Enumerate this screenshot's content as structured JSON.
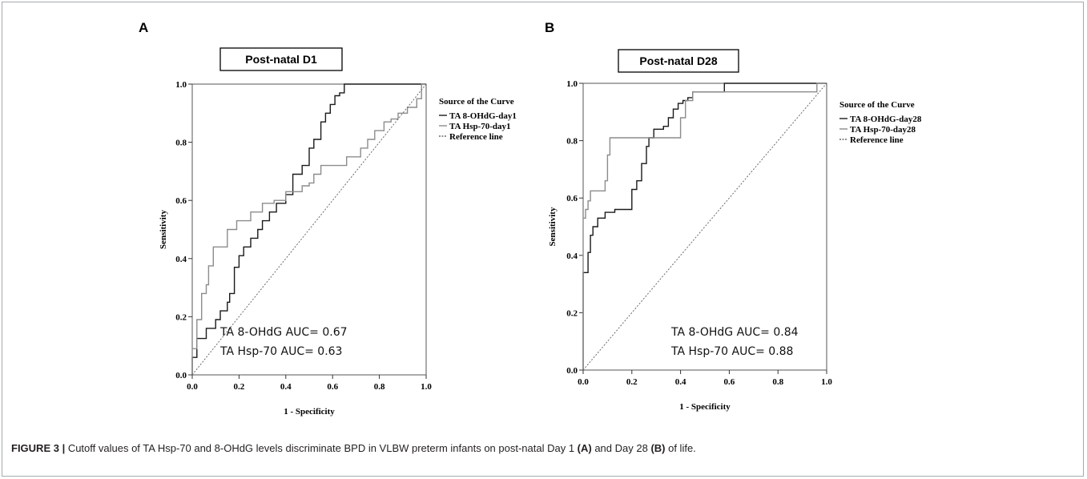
{
  "figure": {
    "caption_label": "FIGURE 3 |",
    "caption_text_1": " Cutoff values of TA Hsp-70 and 8-OHdG levels discriminate BPD in VLBW preterm infants on post-natal Day 1 ",
    "caption_ref_a": "(A)",
    "caption_text_2": " and Day 28 ",
    "caption_ref_b": "(B)",
    "caption_text_3": " of life."
  },
  "chart_data": [
    {
      "type": "line",
      "panel": "A",
      "title": "Post-natal D1",
      "xlabel": "1 - Specificity",
      "ylabel": "Sensitivity",
      "xlim": [
        0,
        1
      ],
      "ylim": [
        0,
        1
      ],
      "xticks": [
        "0.0",
        "0.2",
        "0.4",
        "0.6",
        "0.8",
        "1.0"
      ],
      "yticks": [
        "0.0",
        "0.2",
        "0.4",
        "0.6",
        "0.8",
        "1.0"
      ],
      "legend_title": "Source of the Curve",
      "legend_position": "right-outside",
      "grid": false,
      "series": [
        {
          "name": "TA 8-OHdG-day1",
          "color": "#1a1a1a",
          "dash": "solid",
          "x": [
            0,
            0,
            0.02,
            0.02,
            0.06,
            0.06,
            0.1,
            0.1,
            0.12,
            0.12,
            0.15,
            0.15,
            0.16,
            0.16,
            0.18,
            0.18,
            0.2,
            0.2,
            0.22,
            0.22,
            0.25,
            0.25,
            0.28,
            0.28,
            0.3,
            0.3,
            0.33,
            0.33,
            0.36,
            0.36,
            0.4,
            0.4,
            0.43,
            0.43,
            0.47,
            0.47,
            0.5,
            0.5,
            0.52,
            0.52,
            0.55,
            0.55,
            0.57,
            0.57,
            0.59,
            0.59,
            0.61,
            0.61,
            0.63,
            0.63,
            0.65,
            0.65,
            1
          ],
          "y": [
            0,
            0.06,
            0.06,
            0.125,
            0.125,
            0.16,
            0.16,
            0.19,
            0.19,
            0.22,
            0.22,
            0.25,
            0.25,
            0.28,
            0.28,
            0.37,
            0.37,
            0.41,
            0.41,
            0.44,
            0.44,
            0.47,
            0.47,
            0.5,
            0.5,
            0.53,
            0.53,
            0.56,
            0.56,
            0.59,
            0.59,
            0.62,
            0.62,
            0.69,
            0.69,
            0.72,
            0.72,
            0.78,
            0.78,
            0.81,
            0.81,
            0.87,
            0.87,
            0.9,
            0.9,
            0.93,
            0.93,
            0.96,
            0.96,
            0.97,
            0.97,
            1,
            1
          ]
        },
        {
          "name": "TA Hsp-70-day1",
          "color": "#8c8c8c",
          "dash": "solid",
          "x": [
            0,
            0,
            0.02,
            0.02,
            0.04,
            0.04,
            0.06,
            0.06,
            0.07,
            0.07,
            0.09,
            0.09,
            0.15,
            0.15,
            0.19,
            0.19,
            0.25,
            0.25,
            0.3,
            0.3,
            0.35,
            0.35,
            0.4,
            0.4,
            0.47,
            0.47,
            0.5,
            0.5,
            0.52,
            0.52,
            0.55,
            0.55,
            0.6,
            0.6,
            0.66,
            0.66,
            0.72,
            0.72,
            0.75,
            0.75,
            0.78,
            0.78,
            0.82,
            0.82,
            0.85,
            0.85,
            0.88,
            0.88,
            0.92,
            0.92,
            0.96,
            0.96,
            0.98,
            0.98,
            1
          ],
          "y": [
            0,
            0.09,
            0.09,
            0.19,
            0.19,
            0.28,
            0.28,
            0.31,
            0.31,
            0.375,
            0.375,
            0.44,
            0.44,
            0.5,
            0.5,
            0.53,
            0.53,
            0.56,
            0.56,
            0.59,
            0.59,
            0.6,
            0.6,
            0.63,
            0.63,
            0.65,
            0.65,
            0.66,
            0.66,
            0.69,
            0.69,
            0.72,
            0.72,
            0.72,
            0.72,
            0.75,
            0.75,
            0.78,
            0.78,
            0.81,
            0.81,
            0.84,
            0.84,
            0.87,
            0.87,
            0.88,
            0.88,
            0.9,
            0.9,
            0.92,
            0.92,
            0.95,
            0.95,
            1,
            1
          ]
        },
        {
          "name": "Reference line",
          "color": "#6a6a6a",
          "dash": "dotted",
          "x": [
            0,
            1
          ],
          "y": [
            0,
            1
          ]
        }
      ],
      "annotations": [
        "TA 8-OHdG AUC= 0.67",
        "TA Hsp-70 AUC= 0.63"
      ]
    },
    {
      "type": "line",
      "panel": "B",
      "title": "Post-natal D28",
      "xlabel": "1 - Specificity",
      "ylabel": "Sensitivity",
      "xlim": [
        0,
        1
      ],
      "ylim": [
        0,
        1
      ],
      "xticks": [
        "0.0",
        "0.2",
        "0.4",
        "0.6",
        "0.8",
        "1.0"
      ],
      "yticks": [
        "0.0",
        "0.2",
        "0.4",
        "0.6",
        "0.8",
        "1.0"
      ],
      "legend_title": "Source of the Curve",
      "legend_position": "right-outside",
      "grid": false,
      "series": [
        {
          "name": "TA 8-OHdG-day28",
          "color": "#1a1a1a",
          "dash": "solid",
          "x": [
            0,
            0,
            0.02,
            0.02,
            0.03,
            0.03,
            0.04,
            0.04,
            0.06,
            0.06,
            0.09,
            0.09,
            0.13,
            0.13,
            0.2,
            0.2,
            0.22,
            0.22,
            0.24,
            0.24,
            0.26,
            0.26,
            0.27,
            0.27,
            0.29,
            0.29,
            0.33,
            0.33,
            0.35,
            0.35,
            0.37,
            0.37,
            0.39,
            0.39,
            0.41,
            0.41,
            0.43,
            0.43,
            0.45,
            0.45,
            0.5,
            0.5,
            0.58,
            0.58,
            1
          ],
          "y": [
            0,
            0.34,
            0.34,
            0.41,
            0.41,
            0.47,
            0.47,
            0.5,
            0.5,
            0.53,
            0.53,
            0.55,
            0.55,
            0.56,
            0.56,
            0.63,
            0.63,
            0.66,
            0.66,
            0.72,
            0.72,
            0.78,
            0.78,
            0.81,
            0.81,
            0.84,
            0.84,
            0.85,
            0.85,
            0.88,
            0.88,
            0.91,
            0.91,
            0.93,
            0.93,
            0.94,
            0.94,
            0.95,
            0.95,
            0.97,
            0.97,
            0.97,
            0.97,
            1,
            1
          ]
        },
        {
          "name": "TA Hsp-70-day28",
          "color": "#8c8c8c",
          "dash": "solid",
          "x": [
            0,
            0,
            0.01,
            0.01,
            0.02,
            0.02,
            0.03,
            0.03,
            0.09,
            0.09,
            0.1,
            0.1,
            0.11,
            0.11,
            0.12,
            0.12,
            0.23,
            0.23,
            0.26,
            0.26,
            0.4,
            0.4,
            0.42,
            0.42,
            0.45,
            0.45,
            0.96,
            0.96,
            1
          ],
          "y": [
            0,
            0.53,
            0.53,
            0.56,
            0.56,
            0.59,
            0.59,
            0.625,
            0.625,
            0.66,
            0.66,
            0.75,
            0.75,
            0.81,
            0.81,
            0.81,
            0.81,
            0.81,
            0.81,
            0.81,
            0.81,
            0.88,
            0.88,
            0.94,
            0.94,
            0.97,
            0.97,
            1,
            1
          ]
        },
        {
          "name": "Reference line",
          "color": "#6a6a6a",
          "dash": "dotted",
          "x": [
            0,
            1
          ],
          "y": [
            0,
            1
          ]
        }
      ],
      "annotations": [
        "TA 8-OHdG AUC= 0.84",
        "TA Hsp-70 AUC= 0.88"
      ]
    }
  ]
}
